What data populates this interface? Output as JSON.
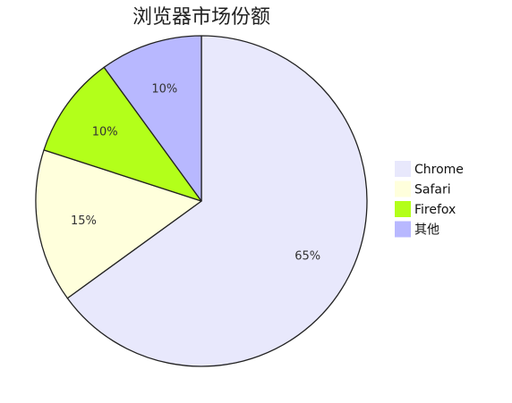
{
  "chart_data": {
    "type": "pie",
    "title": "浏览器市场份额",
    "categories": [
      "Chrome",
      "Safari",
      "Firefox",
      "其他"
    ],
    "values": [
      65,
      15,
      10,
      10
    ],
    "labels": [
      "65%",
      "15%",
      "10%",
      "10%"
    ],
    "colors": [
      "#e8e8fc",
      "#ffffdc",
      "#b3ff1a",
      "#b8b8ff"
    ],
    "legend_position": "right",
    "start_angle": "12 o'clock",
    "direction": "clockwise"
  }
}
